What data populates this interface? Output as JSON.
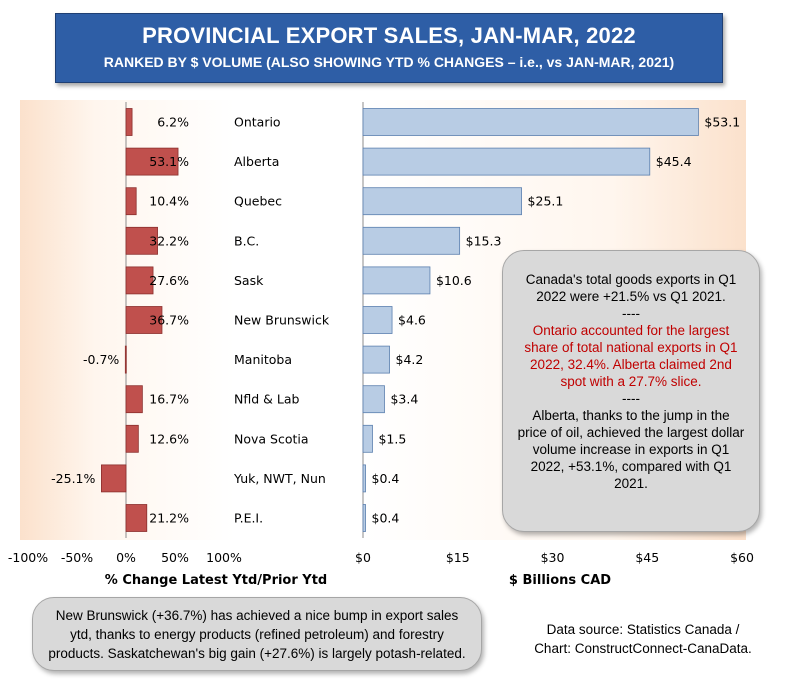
{
  "title": "PROVINCIAL EXPORT SALES, JAN-MAR, 2022",
  "subtitle": "RANKED BY $ VOLUME (ALSO SHOWING YTD % CHANGES – i.e., vs JAN-MAR, 2021)",
  "chart_data": [
    {
      "type": "bar",
      "orientation": "horizontal",
      "categories": [
        "Ontario",
        "Alberta",
        "Quebec",
        "B.C.",
        "Sask",
        "New Brunswick",
        "Manitoba",
        "Nfld & Lab",
        "Nova Scotia",
        "Yuk, NWT, Nun",
        "P.E.I."
      ],
      "values": [
        6.2,
        53.1,
        10.4,
        32.2,
        27.6,
        36.7,
        -0.7,
        16.7,
        12.6,
        -25.1,
        21.2
      ],
      "value_labels": [
        "6.2%",
        "53.1%",
        "10.4%",
        "32.2%",
        "27.6%",
        "36.7%",
        "-0.7%",
        "16.7%",
        "12.6%",
        "-25.1%",
        "21.2%"
      ],
      "xlabel": "% Change Latest Ytd/Prior Ytd",
      "xlim": [
        -100,
        100
      ],
      "xticks": [
        "-100%",
        "-50%",
        "0%",
        "50%",
        "100%"
      ],
      "color": "#c0504d"
    },
    {
      "type": "bar",
      "orientation": "horizontal",
      "categories": [
        "Ontario",
        "Alberta",
        "Quebec",
        "B.C.",
        "Sask",
        "New Brunswick",
        "Manitoba",
        "Nfld & Lab",
        "Nova Scotia",
        "Yuk, NWT, Nun",
        "P.E.I."
      ],
      "values": [
        53.1,
        45.4,
        25.1,
        15.3,
        10.6,
        4.6,
        4.2,
        3.4,
        1.5,
        0.4,
        0.4
      ],
      "value_labels": [
        "$53.1",
        "$45.4",
        "$25.1",
        "$15.3",
        "$10.6",
        "$4.6",
        "$4.2",
        "$3.4",
        "$1.5",
        "$0.4",
        "$0.4"
      ],
      "xlabel": "$ Billions CAD",
      "xlim": [
        0,
        60
      ],
      "xticks": [
        "$0",
        "$15",
        "$30",
        "$45",
        "$60"
      ],
      "color": "#b8cce4"
    }
  ],
  "note_right": {
    "line1": "Canada's total goods exports in Q1 2022 were +21.5% vs Q1 2021.",
    "sep1": "----",
    "red": "Ontario accounted for the largest share of total national exports in Q1 2022, 32.4%. Alberta claimed 2nd spot with a 27.7% slice.",
    "sep2": "----",
    "line2": "Alberta, thanks to the jump in the price of oil, achieved the largest dollar volume increase in exports in Q1 2022, +53.1%, compared with Q1 2021."
  },
  "note_bottom": "New Brunswick (+36.7%) has achieved a nice bump in export sales ytd, thanks to energy products (refined petroleum) and forestry products. Saskatchewan's big gain (+27.6%) is largely potash-related.",
  "source": {
    "line1": "Data source: Statistics Canada /",
    "line2": "Chart: ConstructConnect-CanaData."
  },
  "colors": {
    "title_bg": "#2e5ea6",
    "pct_bar": "#c0504d",
    "dollar_bar": "#b8cce4",
    "panel_tint": "#fbe5d6",
    "note_bg": "#d9d9d9",
    "note_red": "#c00000"
  }
}
